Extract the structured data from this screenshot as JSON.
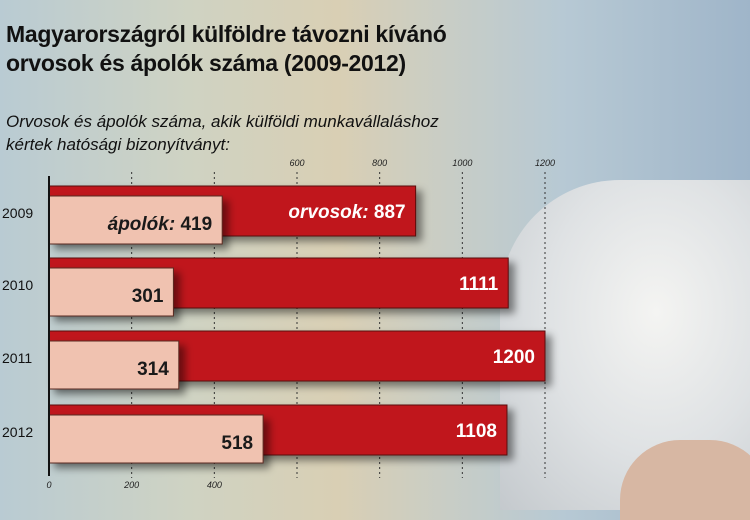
{
  "title_line1": "Magyarországról külföldre távozni kívánó",
  "title_line2": "orvosok és ápolók száma (2009-2012)",
  "subtitle_line1": "Orvosok és ápolók száma, akik külföldi munkavállaláshoz",
  "subtitle_line2": "kértek hatósági bizonyítványt:",
  "chart_data": {
    "type": "bar",
    "orientation": "horizontal",
    "categories": [
      "2009",
      "2010",
      "2011",
      "2012"
    ],
    "series": [
      {
        "name": "orvosok",
        "values": [
          887,
          1111,
          1200,
          1108
        ],
        "color": "#c0161f"
      },
      {
        "name": "ápolók",
        "values": [
          419,
          301,
          314,
          518
        ],
        "color": "#f0c2b0"
      }
    ],
    "xlim": [
      0,
      1200
    ],
    "top_ticks": [
      600,
      800,
      1000,
      1200
    ],
    "bottom_ticks": [
      0,
      200,
      400
    ],
    "grid": "dotted vertical"
  }
}
